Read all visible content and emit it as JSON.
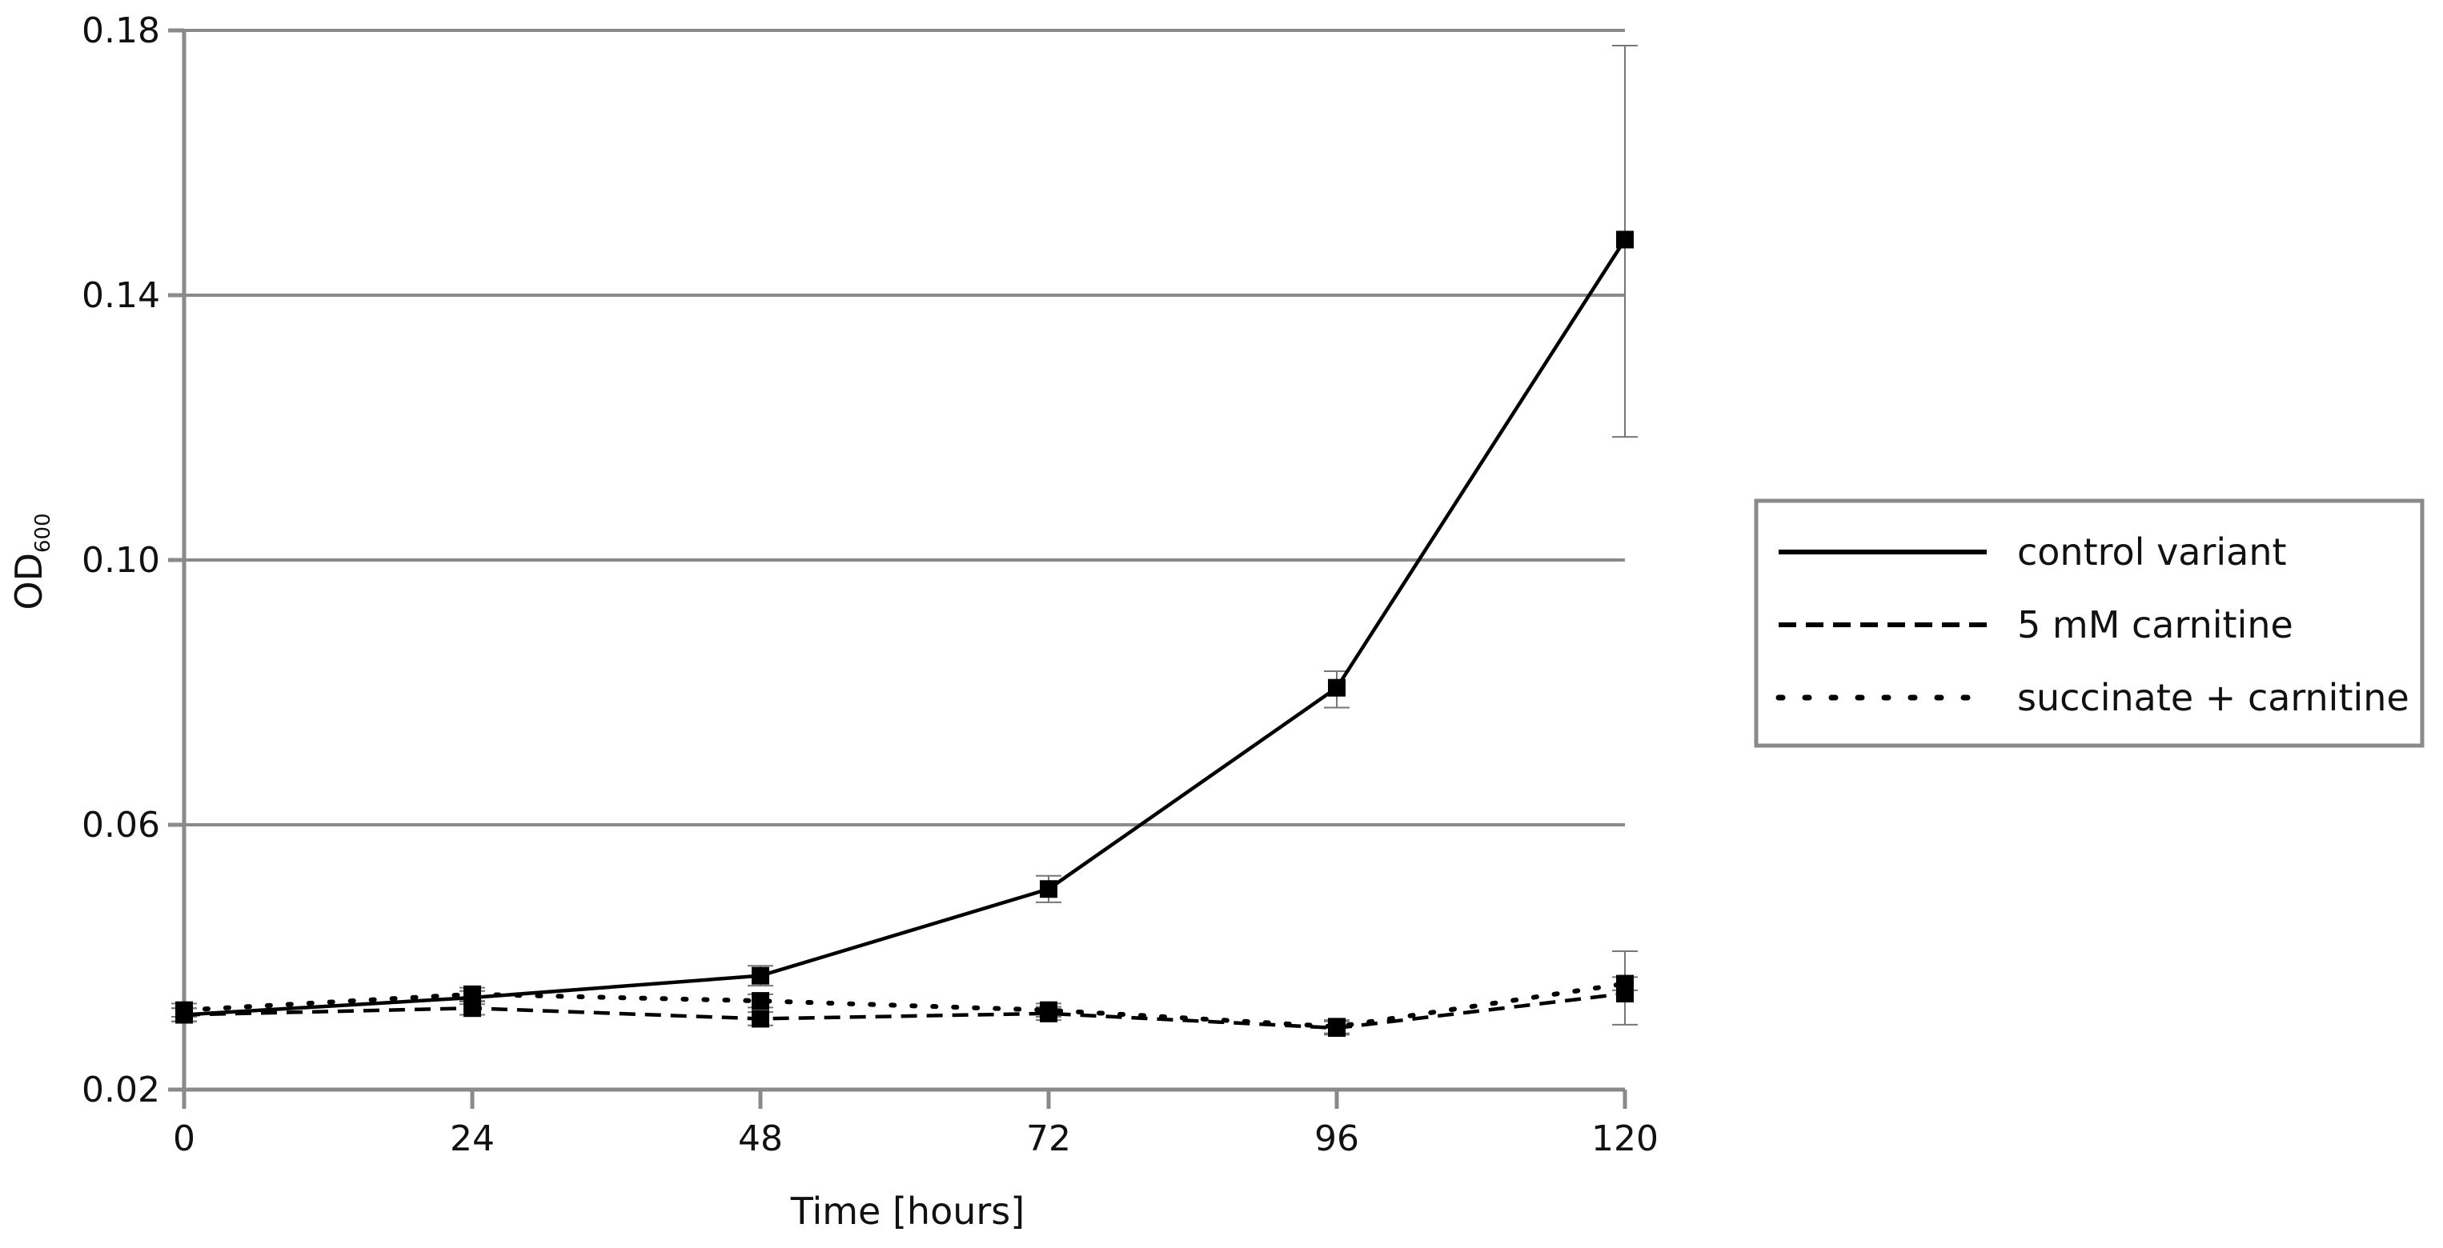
{
  "chart_data": {
    "type": "line",
    "xlabel": "Time [hours]",
    "ylabel_main": "OD",
    "ylabel_sub": "600",
    "x": [
      0,
      24,
      48,
      72,
      96,
      120
    ],
    "xlim": [
      0,
      120
    ],
    "ylim": [
      0.02,
      0.18
    ],
    "xticks": [
      "0",
      "24",
      "48",
      "72",
      "96",
      "120"
    ],
    "yticks": [
      "0.02",
      "0.06",
      "0.10",
      "0.14",
      "0.18"
    ],
    "ytick_values": [
      0.02,
      0.06,
      0.1,
      0.14,
      0.18
    ],
    "grid": "horizontal",
    "legend_position": "right",
    "series": [
      {
        "name": "control variant",
        "style": "solid",
        "values": [
          0.0313,
          0.0339,
          0.0372,
          0.0503,
          0.0807,
          0.1484
        ],
        "err_low": [
          0.0303,
          0.0329,
          0.0357,
          0.0483,
          0.0777,
          0.1186
        ],
        "err_high": [
          0.0323,
          0.0349,
          0.0387,
          0.0523,
          0.0832,
          0.1777
        ]
      },
      {
        "name": "5 mM carnitine",
        "style": "dashed",
        "values": [
          0.0313,
          0.0323,
          0.0307,
          0.0315,
          0.0293,
          0.0345
        ],
        "err_low": [
          0.0303,
          0.0313,
          0.0297,
          0.0305,
          0.0283,
          0.0298
        ],
        "err_high": [
          0.0323,
          0.0333,
          0.0317,
          0.0325,
          0.0303,
          0.0409
        ]
      },
      {
        "name": "succinate + carnitine",
        "style": "dotted",
        "values": [
          0.032,
          0.0344,
          0.0334,
          0.032,
          0.0295,
          0.036
        ],
        "err_low": [
          0.031,
          0.0334,
          0.0324,
          0.031,
          0.0285,
          0.035
        ],
        "err_high": [
          0.033,
          0.0354,
          0.0344,
          0.033,
          0.0305,
          0.037
        ]
      }
    ]
  },
  "colors": {
    "grid": "#8a8a8a",
    "axis": "#8a8a8a",
    "line": "#000000",
    "errorbar": "#777777",
    "legend_border": "#8a8a8a"
  }
}
